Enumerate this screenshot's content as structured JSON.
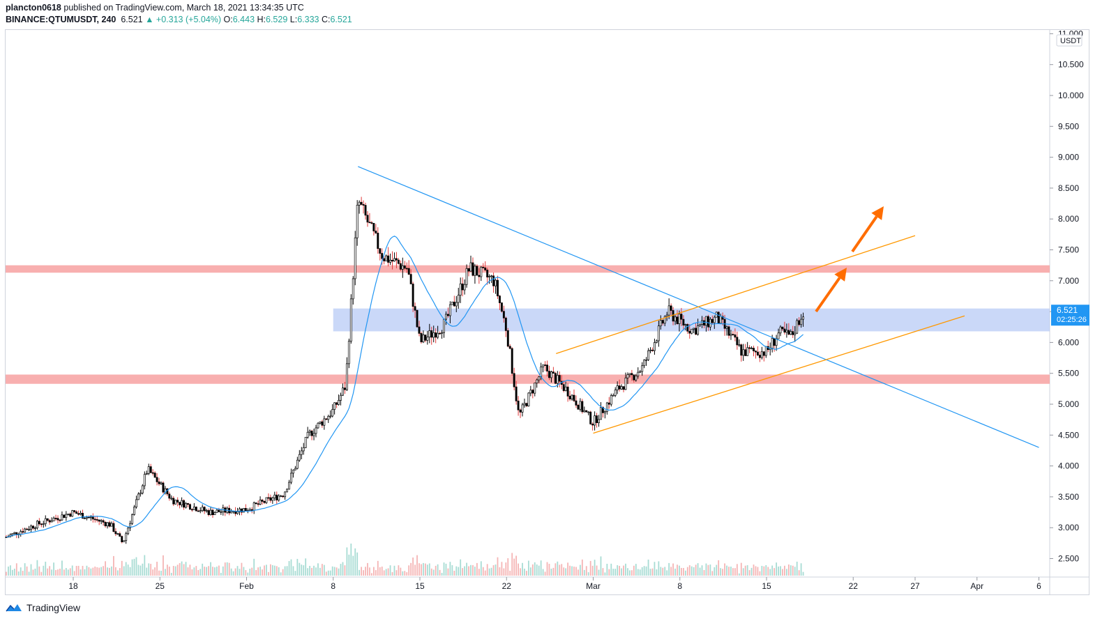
{
  "header": {
    "author": "plancton0618",
    "published_text": "published on TradingView.com, March 18, 2021 13:34:35 UTC",
    "symbol": "BINANCE:QTUMUSDT, 240",
    "last": "6.521",
    "change": "▲ +0.313 (+5.04%)",
    "o_label": "O:",
    "o_value": "6.443",
    "h_label": "H:",
    "h_value": "6.529",
    "l_label": "L:",
    "l_value": "6.333",
    "c_label": "C:",
    "c_value": "6.521"
  },
  "footer": {
    "brand": "TradingView"
  },
  "colors": {
    "up": "#26a69a",
    "candle": "#000000",
    "wick_down": "#e03a3a",
    "ma": "#2196f3",
    "trend": "#2196f3",
    "channel": "#ff9800",
    "resistance": "#f7a1a1",
    "zone": "#b3c8f5",
    "arrow": "#ff6d00",
    "price_tag": "#2196f3"
  },
  "chart_data": {
    "type": "candlestick",
    "currency": "USDT",
    "y_axis": {
      "ticks": [
        "2.500",
        "3.000",
        "3.500",
        "4.000",
        "4.500",
        "5.000",
        "5.500",
        "6.000",
        "6.500",
        "7.000",
        "7.500",
        "8.000",
        "8.500",
        "9.000",
        "9.500",
        "10.000",
        "10.500",
        "11.000"
      ],
      "range": [
        2.2,
        11.0
      ]
    },
    "x_axis": {
      "ticks": [
        "18",
        "25",
        "Feb",
        "8",
        "15",
        "22",
        "Mar",
        "8",
        "15",
        "22",
        "27",
        "Apr",
        "6"
      ]
    },
    "last_price": "6.521",
    "countdown": "02:25:26",
    "price_path": [
      {
        "date": "2021-01-12",
        "price": 2.8
      },
      {
        "date": "2021-01-15",
        "price": 3.05
      },
      {
        "date": "2021-01-18",
        "price": 3.25
      },
      {
        "date": "2021-01-21",
        "price": 3.05
      },
      {
        "date": "2021-01-22",
        "price": 2.75
      },
      {
        "date": "2021-01-24",
        "price": 3.95
      },
      {
        "date": "2021-01-26",
        "price": 3.45
      },
      {
        "date": "2021-01-29",
        "price": 3.25
      },
      {
        "date": "2021-02-01",
        "price": 3.3
      },
      {
        "date": "2021-02-04",
        "price": 3.55
      },
      {
        "date": "2021-02-06",
        "price": 4.5
      },
      {
        "date": "2021-02-08",
        "price": 4.9
      },
      {
        "date": "2021-02-09",
        "price": 5.3
      },
      {
        "date": "2021-02-10",
        "price": 8.3
      },
      {
        "date": "2021-02-12",
        "price": 7.4
      },
      {
        "date": "2021-02-14",
        "price": 7.2
      },
      {
        "date": "2021-02-15",
        "price": 6.0
      },
      {
        "date": "2021-02-17",
        "price": 6.3
      },
      {
        "date": "2021-02-19",
        "price": 7.2
      },
      {
        "date": "2021-02-21",
        "price": 7.0
      },
      {
        "date": "2021-02-22",
        "price": 6.2
      },
      {
        "date": "2021-02-23",
        "price": 4.8
      },
      {
        "date": "2021-02-25",
        "price": 5.6
      },
      {
        "date": "2021-02-27",
        "price": 5.2
      },
      {
        "date": "2021-03-01",
        "price": 4.7
      },
      {
        "date": "2021-03-03",
        "price": 5.25
      },
      {
        "date": "2021-03-05",
        "price": 5.6
      },
      {
        "date": "2021-03-07",
        "price": 6.5
      },
      {
        "date": "2021-03-09",
        "price": 6.2
      },
      {
        "date": "2021-03-11",
        "price": 6.4
      },
      {
        "date": "2021-03-13",
        "price": 5.85
      },
      {
        "date": "2021-03-15",
        "price": 5.85
      },
      {
        "date": "2021-03-16",
        "price": 6.15
      },
      {
        "date": "2021-03-17",
        "price": 6.1
      },
      {
        "date": "2021-03-18",
        "price": 6.52
      }
    ],
    "drawings": {
      "resistance_zone_top": [
        7.13,
        7.25
      ],
      "resistance_zone_bottom": [
        5.33,
        5.48
      ],
      "blue_zone": {
        "from": "2021-02-08",
        "top": 6.55,
        "bottom": 6.18
      },
      "descending_trendline": [
        {
          "date": "2021-02-10",
          "price": 8.85
        },
        {
          "date": "2021-04-06",
          "price": 4.3
        }
      ],
      "channel_upper": [
        {
          "date": "2021-02-26",
          "price": 5.82
        },
        {
          "date": "2021-03-27",
          "price": 7.73
        }
      ],
      "channel_lower": [
        {
          "date": "2021-03-01",
          "price": 4.53
        },
        {
          "date": "2021-03-31",
          "price": 6.43
        }
      ]
    }
  }
}
